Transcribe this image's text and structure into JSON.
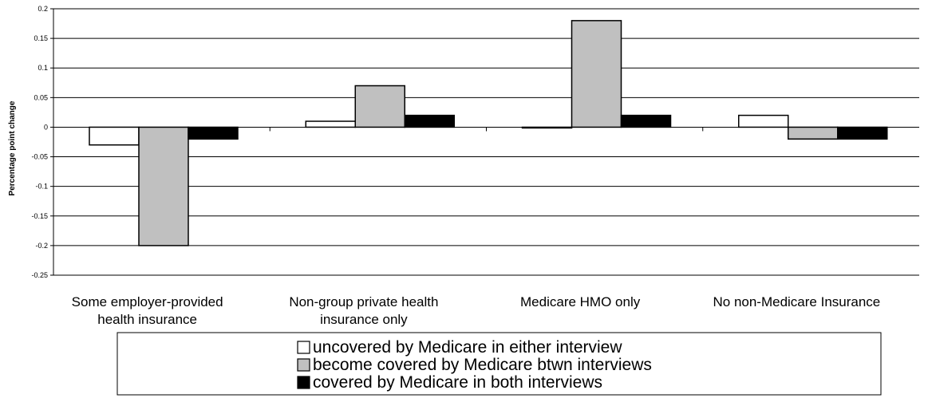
{
  "chart_data": {
    "type": "bar",
    "title": "",
    "xlabel": "",
    "ylabel": "Percentage point change",
    "ylim": [
      -0.25,
      0.2
    ],
    "yticks": [
      0.2,
      0.15,
      0.1,
      0.05,
      0,
      -0.05,
      -0.1,
      -0.15,
      -0.2,
      -0.25
    ],
    "ytick_labels": [
      "0.2",
      "0.15",
      "0.1",
      "0.05",
      "0",
      "-0.05",
      "-0.1",
      "-0.15",
      "-0.2",
      "-0.25"
    ],
    "grid": true,
    "legend_position": "bottom",
    "categories": [
      [
        "Some employer-provided",
        "health insurance"
      ],
      [
        "Non-group private health",
        "insurance only"
      ],
      [
        "Medicare HMO only"
      ],
      [
        "No non-Medicare Insurance"
      ]
    ],
    "series": [
      {
        "name": "uncovered by Medicare in either interview",
        "color": "#ffffff",
        "values": [
          -0.03,
          0.01,
          0,
          0.02
        ]
      },
      {
        "name": "become covered by Medicare btwn interviews",
        "color": "#c0c0c0",
        "values": [
          -0.2,
          0.07,
          0.18,
          -0.02
        ]
      },
      {
        "name": "covered by Medicare in both interviews",
        "color": "#000000",
        "values": [
          -0.02,
          0.02,
          0.02,
          -0.02
        ]
      }
    ]
  }
}
